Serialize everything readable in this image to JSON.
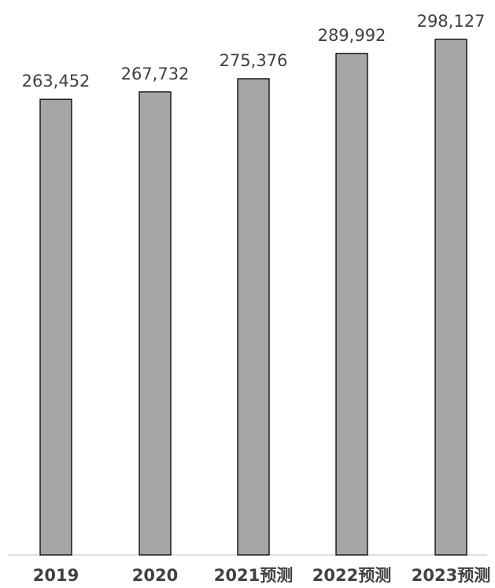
{
  "chart_data": {
    "type": "bar",
    "categories": [
      "2019",
      "2020",
      "2021预测",
      "2022预测",
      "2023预测"
    ],
    "values": [
      263452,
      267732,
      275376,
      289992,
      298127
    ],
    "data_labels": [
      "263,452",
      "267,732",
      "275,376",
      "289,992",
      "298,127"
    ],
    "title": "",
    "xlabel": "",
    "ylabel": "",
    "ylim": [
      0,
      300000
    ],
    "grid": false,
    "legend": "none",
    "colors": {
      "bar_fill": "#a6a6a6",
      "bar_stroke": "#000000",
      "text": "#404040",
      "axis": "#bfbfbf"
    }
  }
}
